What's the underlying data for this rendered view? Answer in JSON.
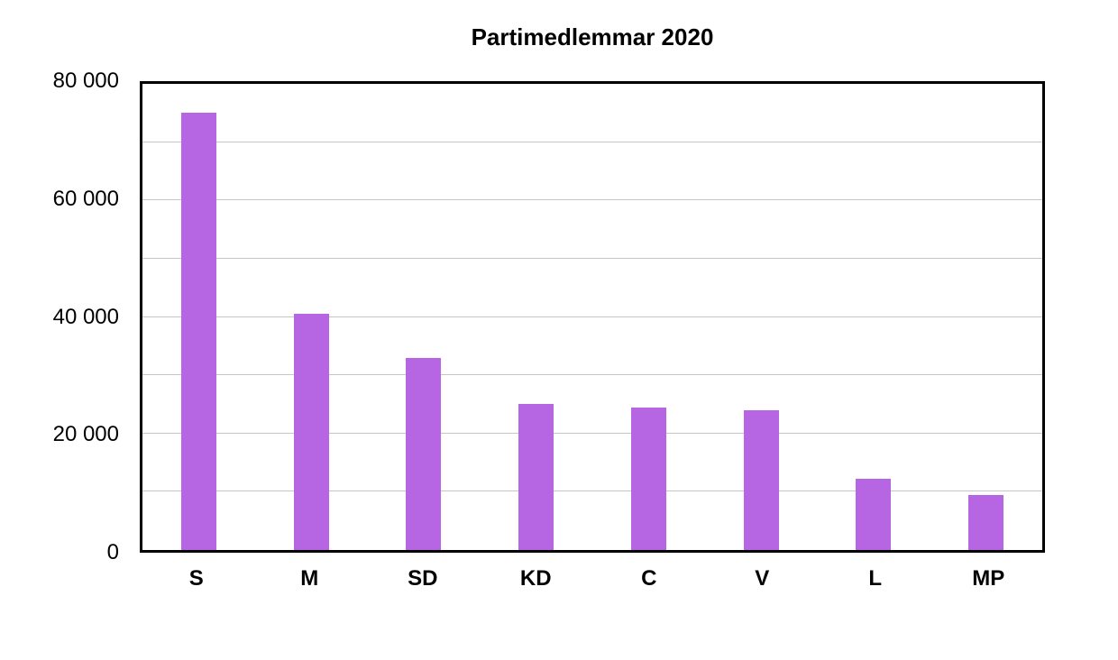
{
  "chart_data": {
    "type": "bar",
    "title": "Partimedlemmar 2020",
    "categories": [
      "S",
      "M",
      "SD",
      "KD",
      "C",
      "V",
      "L",
      "MP"
    ],
    "values": [
      75000,
      40500,
      33000,
      25000,
      24500,
      24000,
      12300,
      9500
    ],
    "xlabel": "",
    "ylabel": "",
    "ylim": [
      0,
      80000
    ],
    "yticks": [
      {
        "value": 0,
        "label": "0"
      },
      {
        "value": 20000,
        "label": "20 000"
      },
      {
        "value": 40000,
        "label": "40 000"
      },
      {
        "value": 60000,
        "label": "60 000"
      },
      {
        "value": 80000,
        "label": "80 000"
      }
    ],
    "grid": true,
    "grid_step": 10000,
    "legend": false,
    "bar_color": "#b666e2",
    "gridline_color": "#c6c6c6",
    "frame_color": "#000000",
    "background_color": "#ffffff"
  }
}
